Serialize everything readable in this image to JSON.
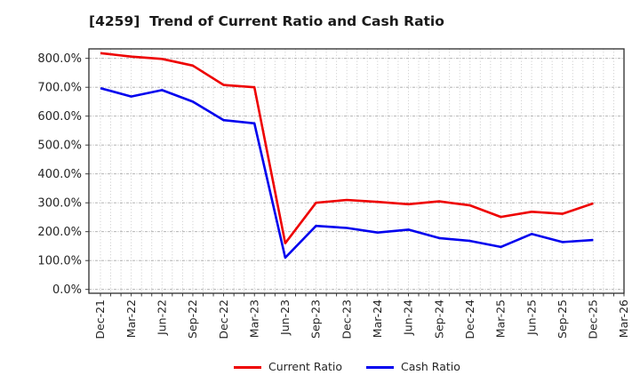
{
  "title": "[4259]  Trend of Current Ratio and Cash Ratio",
  "chart_data": {
    "type": "line",
    "title": "[4259]  Trend of Current Ratio and Cash Ratio",
    "x_labels": [
      "Dec-21",
      "Mar-22",
      "Jun-22",
      "Sep-22",
      "Dec-22",
      "Mar-23",
      "Jun-23",
      "Sep-23",
      "Dec-23",
      "Mar-24",
      "Jun-24",
      "Sep-24",
      "Dec-24",
      "Mar-25",
      "Jun-25",
      "Sep-25",
      "Dec-25",
      "Mar-26"
    ],
    "y_tick_labels": [
      "0.0%",
      "100.0%",
      "200.0%",
      "300.0%",
      "400.0%",
      "500.0%",
      "600.0%",
      "700.0%",
      "800.0%"
    ],
    "y_tick_values": [
      0,
      100,
      200,
      300,
      400,
      500,
      600,
      700,
      800
    ],
    "ylim": [
      0,
      850
    ],
    "xlabel": "",
    "ylabel": "",
    "grid": true,
    "minor_vertical_gridlines": "monthly",
    "legend_position": "bottom-center",
    "values_unit": "%",
    "series": [
      {
        "name": "Current Ratio",
        "color": "#ee0000",
        "values": [
          818,
          806,
          798,
          775,
          708,
          700,
          160,
          300,
          310,
          303,
          295,
          305,
          291,
          251,
          269,
          262,
          298
        ]
      },
      {
        "name": "Cash Ratio",
        "color": "#0000ee",
        "values": [
          697,
          668,
          690,
          650,
          586,
          575,
          110,
          220,
          213,
          197,
          207,
          178,
          168,
          147,
          192,
          164,
          171
        ]
      }
    ]
  },
  "colors": {
    "spine": "#2b2b2b",
    "tick_text": "#262626",
    "grid_minor": "#c3c3c3",
    "grid_major": "#a8a8a8"
  }
}
